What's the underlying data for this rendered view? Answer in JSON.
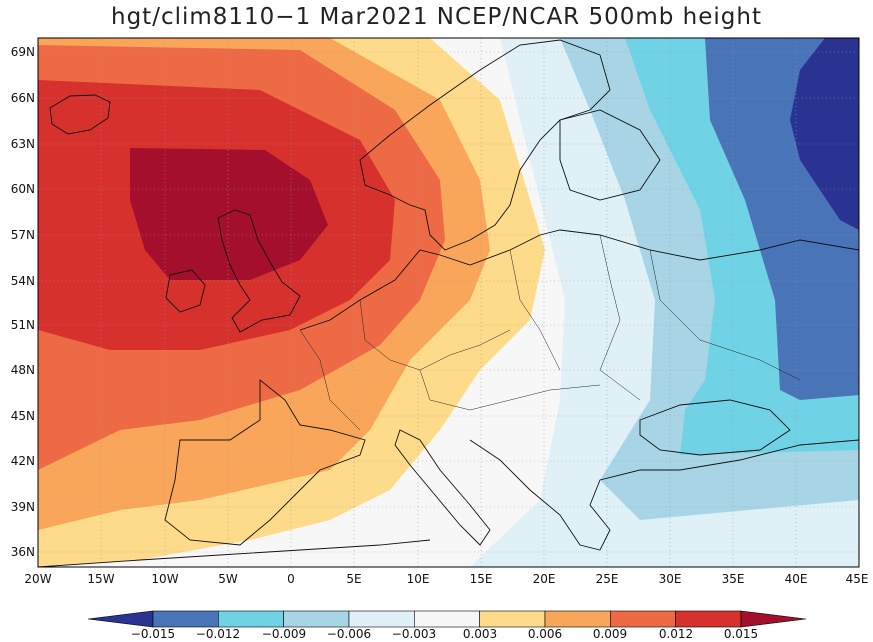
{
  "title": "hgt/clim8110−1 Mar2021 NCEP/NCAR 500mb height",
  "map": {
    "lat_labels": [
      "69N",
      "66N",
      "63N",
      "60N",
      "57N",
      "54N",
      "51N",
      "48N",
      "45N",
      "42N",
      "39N",
      "36N"
    ],
    "lon_labels": [
      "20W",
      "15W",
      "10W",
      "5W",
      "0",
      "5E",
      "10E",
      "15E",
      "20E",
      "25E",
      "30E",
      "35E",
      "40E",
      "45E"
    ]
  },
  "colorbar": {
    "ticks": [
      "−0.015",
      "−0.012",
      "−0.009",
      "−0.006",
      "−0.003",
      "0.003",
      "0.006",
      "0.009",
      "0.012",
      "0.015"
    ],
    "colors": [
      "#2b3392",
      "#4a74b8",
      "#6fd3e5",
      "#a7d5e5",
      "#dff1f7",
      "#f7f7f7",
      "#fddb8a",
      "#f9a65a",
      "#ee6a45",
      "#d7312e",
      "#a30f2c"
    ]
  }
}
